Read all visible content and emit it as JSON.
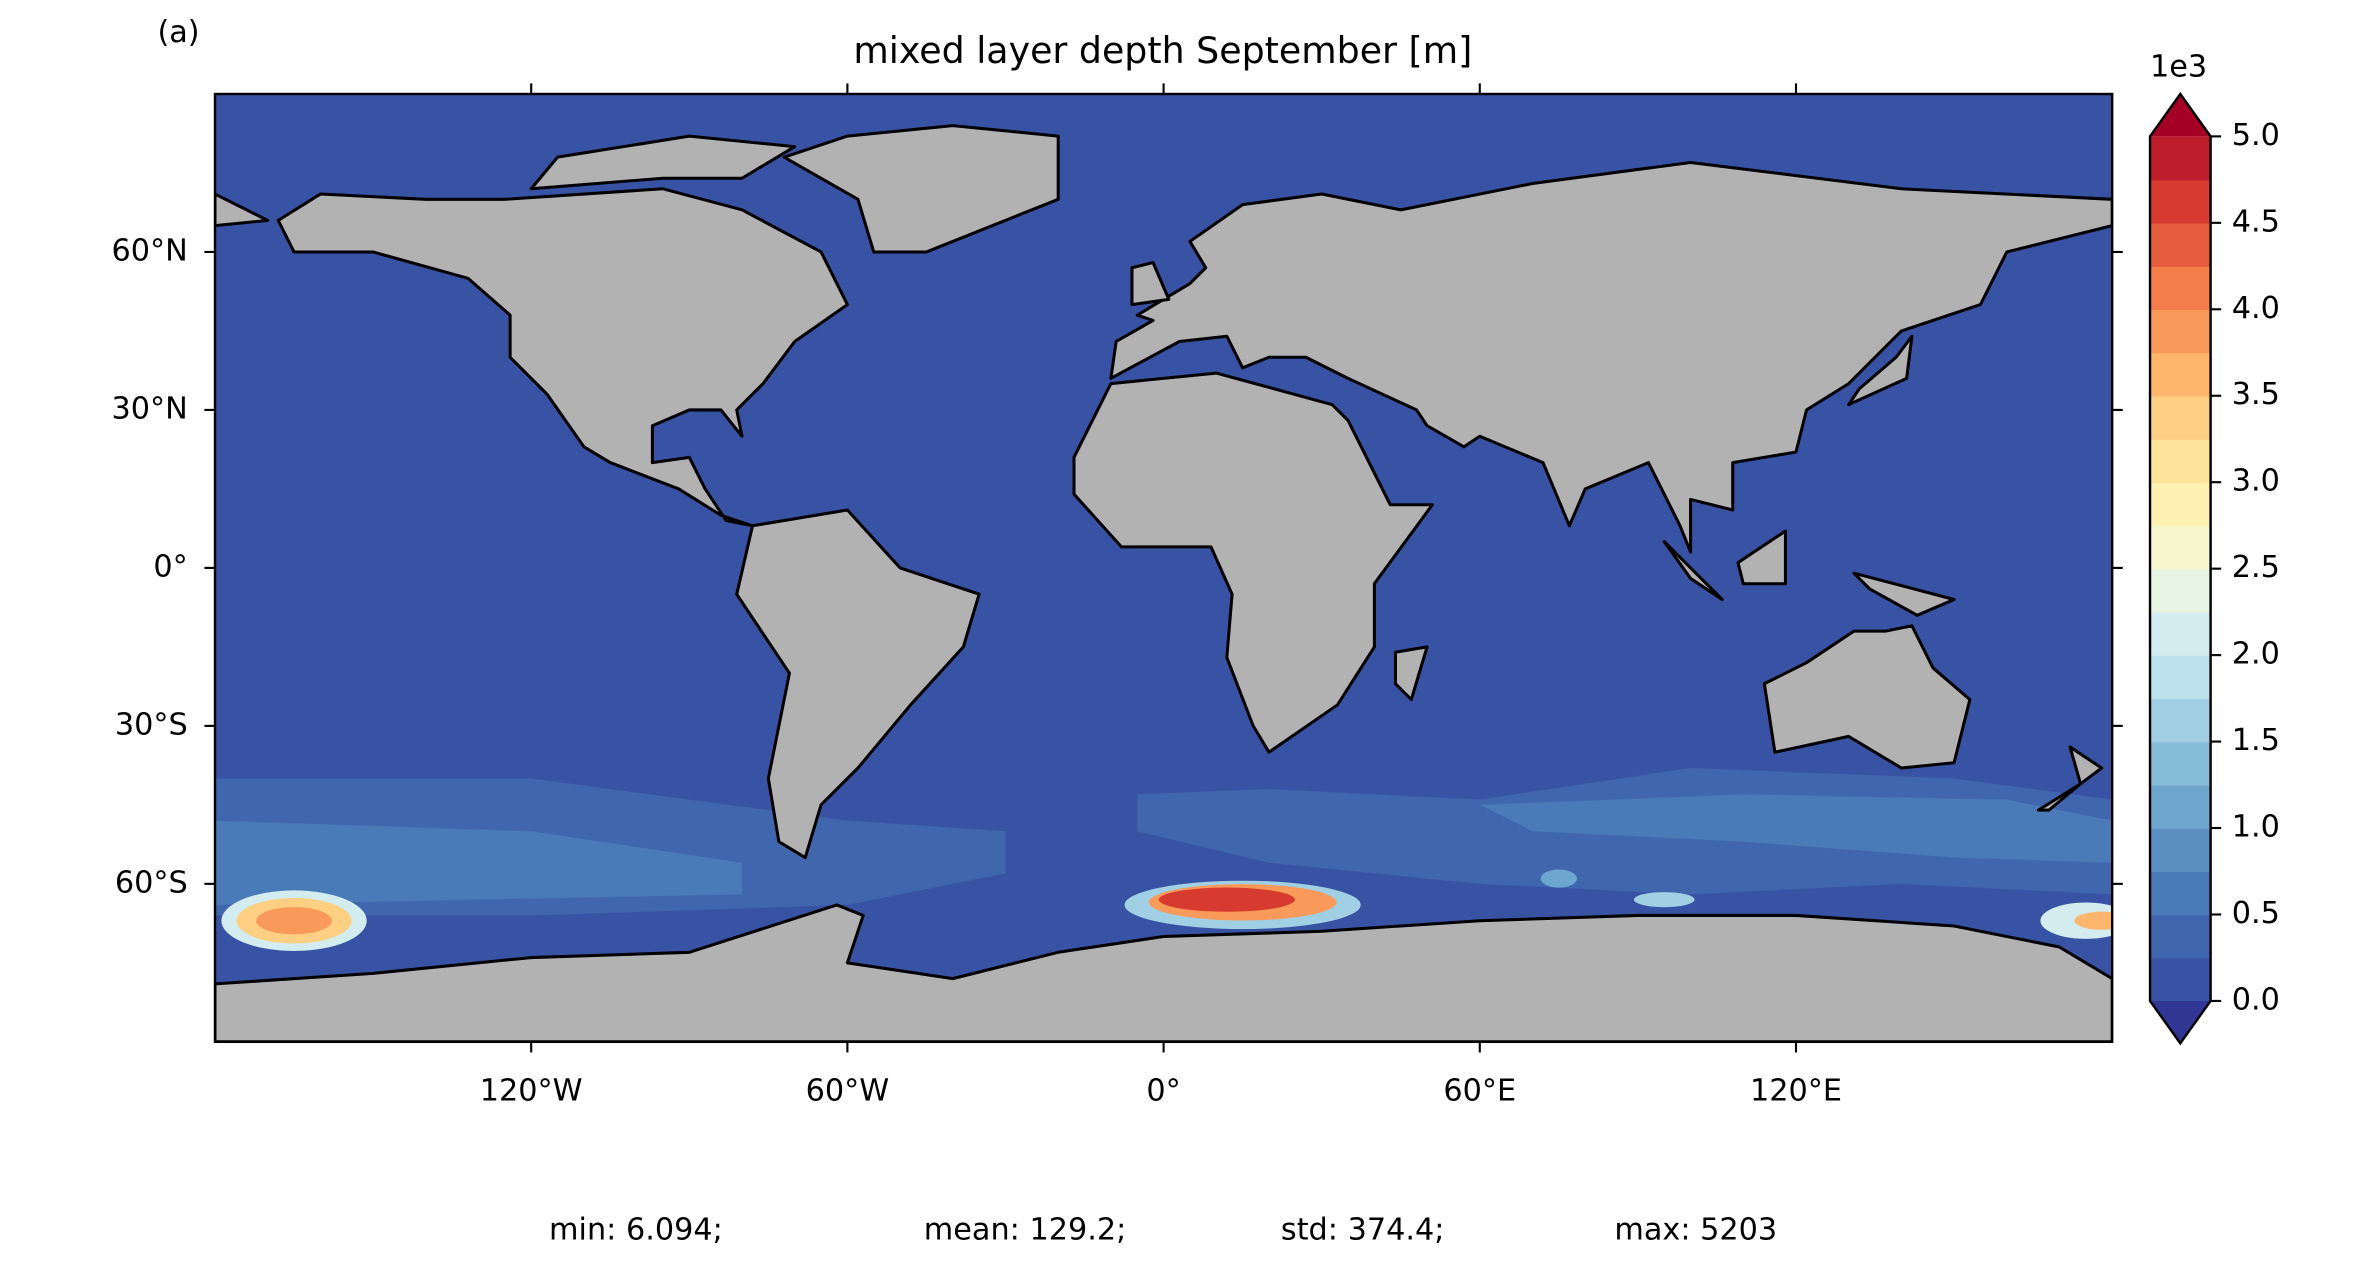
{
  "panel_label": "(a)",
  "chart_data": {
    "type": "map",
    "title": "mixed layer depth September [m]",
    "xlim": [
      -180,
      180
    ],
    "ylim": [
      -90,
      90
    ],
    "xticks": [
      {
        "value": -120,
        "label": "120°W"
      },
      {
        "value": -60,
        "label": "60°W"
      },
      {
        "value": 0,
        "label": "0°"
      },
      {
        "value": 60,
        "label": "60°E"
      },
      {
        "value": 120,
        "label": "120°E"
      }
    ],
    "yticks": [
      {
        "value": 60,
        "label": "60°N"
      },
      {
        "value": 30,
        "label": "30°N"
      },
      {
        "value": 0,
        "label": "0°"
      },
      {
        "value": -30,
        "label": "30°S"
      },
      {
        "value": -60,
        "label": "60°S"
      }
    ],
    "ocean_color": "#3953a4",
    "land_color": "#b2b2b2",
    "colorbar": {
      "label": "1e3",
      "lim": [
        0,
        5
      ],
      "ticks": [
        {
          "value": 0,
          "label": "0.0"
        },
        {
          "value": 0.5,
          "label": "0.5"
        },
        {
          "value": 1,
          "label": "1.0"
        },
        {
          "value": 1.5,
          "label": "1.5"
        },
        {
          "value": 2,
          "label": "2.0"
        },
        {
          "value": 2.5,
          "label": "2.5"
        },
        {
          "value": 3,
          "label": "3.0"
        },
        {
          "value": 3.5,
          "label": "3.5"
        },
        {
          "value": 4,
          "label": "4.0"
        },
        {
          "value": 4.5,
          "label": "4.5"
        },
        {
          "value": 5,
          "label": "5.0"
        }
      ],
      "colors": [
        "#3953a4",
        "#4066ad",
        "#4a7ab7",
        "#5b8fc2",
        "#6ea6cd",
        "#87bcd9",
        "#a1cfe3",
        "#bbe1ed",
        "#d3ecf0",
        "#e7f3e3",
        "#f6f7cc",
        "#fdf0b0",
        "#fee39a",
        "#fdcf82",
        "#fdb66b",
        "#f99a5a",
        "#f47d4c",
        "#e65c3c",
        "#d73a2e",
        "#be1e2b"
      ],
      "under_color": "#313695",
      "over_color": "#a50026"
    },
    "stats": [
      "min: 6.094;",
      "mean: 129.2;",
      "std: 374.4;",
      "max: 5203"
    ]
  }
}
